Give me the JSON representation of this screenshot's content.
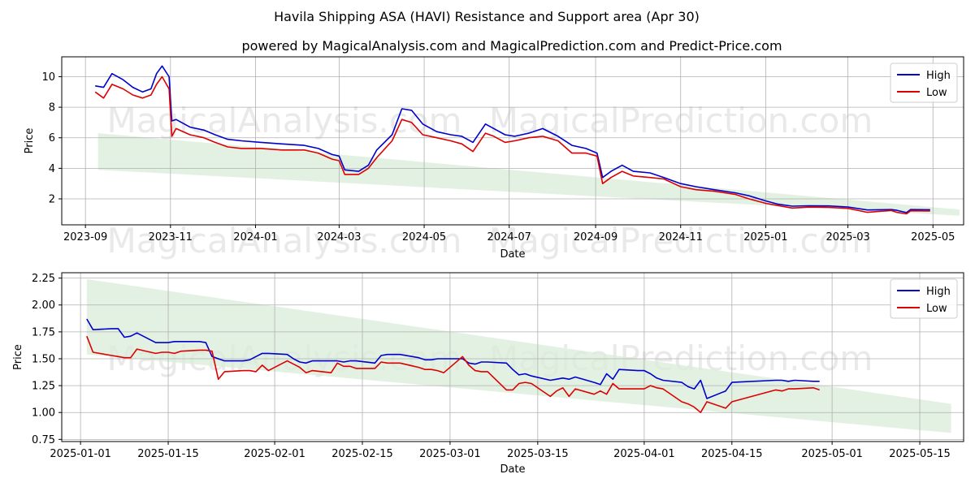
{
  "title": "Havila Shipping ASA (HAVI) Resistance and Support area (Apr 30)",
  "subtitle": "powered by MagicalAnalysis.com and MagicalPrediction.com and Predict-Price.com",
  "watermarks": [
    "MagicalAnalysis.com",
    "MagicalPrediction.com"
  ],
  "colors": {
    "high": "#0000cc",
    "low": "#dd0000",
    "band": "#d9ecd9",
    "grid": "#b0b0b0"
  },
  "chart_data": [
    {
      "type": "line",
      "xlabel": "Date",
      "ylabel": "Price",
      "grid": true,
      "legend_position": "top-right",
      "xlim": [
        "2023-08-15",
        "2025-05-23"
      ],
      "ylim": [
        0.3,
        11.3
      ],
      "x_ticks": [
        "2023-09",
        "2023-11",
        "2024-01",
        "2024-03",
        "2024-05",
        "2024-07",
        "2024-09",
        "2024-11",
        "2025-01",
        "2025-03",
        "2025-05"
      ],
      "x_tick_dates": [
        "2023-09-01",
        "2023-11-01",
        "2024-01-01",
        "2024-03-01",
        "2024-05-01",
        "2024-07-01",
        "2024-09-01",
        "2024-11-01",
        "2025-01-01",
        "2025-03-01",
        "2025-05-01"
      ],
      "y_ticks": [
        2,
        4,
        6,
        8,
        10
      ],
      "band": {
        "dates": [
          "2023-09-10",
          "2025-05-20"
        ],
        "upper": [
          6.3,
          1.3
        ],
        "lower": [
          3.9,
          0.9
        ]
      },
      "series": [
        {
          "name": "High",
          "dates": [
            "2023-09-08",
            "2023-09-14",
            "2023-09-20",
            "2023-09-28",
            "2023-10-05",
            "2023-10-12",
            "2023-10-18",
            "2023-10-22",
            "2023-10-26",
            "2023-10-31",
            "2023-11-02",
            "2023-11-05",
            "2023-11-15",
            "2023-11-25",
            "2023-12-03",
            "2023-12-12",
            "2023-12-22",
            "2024-01-05",
            "2024-01-20",
            "2024-02-05",
            "2024-02-15",
            "2024-02-25",
            "2024-03-01",
            "2024-03-05",
            "2024-03-15",
            "2024-03-22",
            "2024-03-28",
            "2024-04-08",
            "2024-04-15",
            "2024-04-22",
            "2024-04-30",
            "2024-05-10",
            "2024-05-20",
            "2024-05-28",
            "2024-06-05",
            "2024-06-14",
            "2024-06-20",
            "2024-06-28",
            "2024-07-05",
            "2024-07-15",
            "2024-07-25",
            "2024-08-05",
            "2024-08-15",
            "2024-08-25",
            "2024-09-02",
            "2024-09-06",
            "2024-09-12",
            "2024-09-20",
            "2024-09-28",
            "2024-10-10",
            "2024-10-20",
            "2024-11-01",
            "2024-11-12",
            "2024-11-25",
            "2024-12-10",
            "2024-12-20",
            "2025-01-01",
            "2025-01-10",
            "2025-01-20",
            "2025-02-01",
            "2025-02-15",
            "2025-03-01",
            "2025-03-15",
            "2025-04-01",
            "2025-04-05",
            "2025-04-12",
            "2025-04-15",
            "2025-04-29"
          ],
          "values": [
            9.4,
            9.3,
            10.2,
            9.8,
            9.3,
            9.0,
            9.2,
            10.2,
            10.7,
            10.0,
            7.1,
            7.2,
            6.7,
            6.5,
            6.2,
            5.9,
            5.8,
            5.7,
            5.6,
            5.5,
            5.3,
            4.9,
            4.8,
            3.9,
            3.8,
            4.2,
            5.2,
            6.2,
            7.9,
            7.8,
            6.9,
            6.4,
            6.2,
            6.1,
            5.7,
            6.9,
            6.6,
            6.2,
            6.1,
            6.3,
            6.6,
            6.1,
            5.5,
            5.3,
            5.0,
            3.4,
            3.8,
            4.2,
            3.8,
            3.7,
            3.4,
            3.0,
            2.8,
            2.6,
            2.4,
            2.2,
            1.87,
            1.65,
            1.52,
            1.55,
            1.54,
            1.47,
            1.27,
            1.3,
            1.25,
            1.1,
            1.3,
            1.29
          ]
        },
        {
          "name": "Low",
          "dates": [
            "2023-09-08",
            "2023-09-14",
            "2023-09-20",
            "2023-09-28",
            "2023-10-05",
            "2023-10-12",
            "2023-10-18",
            "2023-10-22",
            "2023-10-26",
            "2023-10-31",
            "2023-11-02",
            "2023-11-05",
            "2023-11-15",
            "2023-11-25",
            "2023-12-03",
            "2023-12-12",
            "2023-12-22",
            "2024-01-05",
            "2024-01-20",
            "2024-02-05",
            "2024-02-15",
            "2024-02-25",
            "2024-03-01",
            "2024-03-05",
            "2024-03-15",
            "2024-03-22",
            "2024-03-28",
            "2024-04-08",
            "2024-04-15",
            "2024-04-22",
            "2024-04-30",
            "2024-05-10",
            "2024-05-20",
            "2024-05-28",
            "2024-06-05",
            "2024-06-14",
            "2024-06-20",
            "2024-06-28",
            "2024-07-05",
            "2024-07-15",
            "2024-07-25",
            "2024-08-05",
            "2024-08-15",
            "2024-08-25",
            "2024-09-02",
            "2024-09-06",
            "2024-09-12",
            "2024-09-20",
            "2024-09-28",
            "2024-10-10",
            "2024-10-20",
            "2024-11-01",
            "2024-11-12",
            "2024-11-25",
            "2024-12-10",
            "2024-12-20",
            "2025-01-01",
            "2025-01-10",
            "2025-01-20",
            "2025-02-01",
            "2025-02-15",
            "2025-03-01",
            "2025-03-15",
            "2025-04-01",
            "2025-04-05",
            "2025-04-12",
            "2025-04-15",
            "2025-04-29"
          ],
          "values": [
            9.0,
            8.6,
            9.5,
            9.2,
            8.8,
            8.6,
            8.8,
            9.5,
            10.0,
            9.2,
            6.1,
            6.6,
            6.2,
            6.0,
            5.7,
            5.4,
            5.3,
            5.3,
            5.2,
            5.2,
            5.0,
            4.6,
            4.5,
            3.6,
            3.6,
            4.0,
            4.7,
            5.8,
            7.2,
            7.0,
            6.2,
            6.0,
            5.8,
            5.6,
            5.1,
            6.3,
            6.1,
            5.7,
            5.8,
            6.0,
            6.1,
            5.8,
            5.0,
            5.0,
            4.8,
            3.0,
            3.4,
            3.8,
            3.5,
            3.4,
            3.3,
            2.8,
            2.6,
            2.5,
            2.3,
            2.0,
            1.71,
            1.56,
            1.4,
            1.46,
            1.44,
            1.38,
            1.12,
            1.24,
            1.12,
            1.02,
            1.22,
            1.21
          ]
        }
      ]
    },
    {
      "type": "line",
      "xlabel": "Date",
      "ylabel": "Price",
      "grid": true,
      "legend_position": "top-right",
      "xlim": [
        "2024-12-29",
        "2025-05-22"
      ],
      "ylim": [
        0.73,
        2.3
      ],
      "x_ticks": [
        "2025-01-01",
        "2025-01-15",
        "2025-02-01",
        "2025-02-15",
        "2025-03-01",
        "2025-03-15",
        "2025-04-01",
        "2025-04-15",
        "2025-05-01",
        "2025-05-15"
      ],
      "y_ticks": [
        0.75,
        1.0,
        1.25,
        1.5,
        1.75,
        2.0,
        2.25
      ],
      "band": {
        "dates": [
          "2025-01-02",
          "2025-05-20"
        ],
        "upper": [
          2.24,
          1.08
        ],
        "lower": [
          1.54,
          0.81
        ]
      },
      "series": [
        {
          "name": "High",
          "dates": [
            "2025-01-02",
            "2025-01-03",
            "2025-01-06",
            "2025-01-07",
            "2025-01-08",
            "2025-01-09",
            "2025-01-10",
            "2025-01-13",
            "2025-01-14",
            "2025-01-15",
            "2025-01-16",
            "2025-01-17",
            "2025-01-20",
            "2025-01-21",
            "2025-01-22",
            "2025-01-23",
            "2025-01-24",
            "2025-01-27",
            "2025-01-28",
            "2025-01-29",
            "2025-01-30",
            "2025-01-31",
            "2025-02-03",
            "2025-02-04",
            "2025-02-05",
            "2025-02-06",
            "2025-02-07",
            "2025-02-10",
            "2025-02-11",
            "2025-02-12",
            "2025-02-13",
            "2025-02-14",
            "2025-02-17",
            "2025-02-18",
            "2025-02-19",
            "2025-02-20",
            "2025-02-21",
            "2025-02-24",
            "2025-02-25",
            "2025-02-26",
            "2025-02-27",
            "2025-02-28",
            "2025-03-03",
            "2025-03-04",
            "2025-03-05",
            "2025-03-06",
            "2025-03-07",
            "2025-03-10",
            "2025-03-11",
            "2025-03-12",
            "2025-03-13",
            "2025-03-14",
            "2025-03-17",
            "2025-03-18",
            "2025-03-19",
            "2025-03-20",
            "2025-03-21",
            "2025-03-24",
            "2025-03-25",
            "2025-03-26",
            "2025-03-27",
            "2025-03-28",
            "2025-03-31",
            "2025-04-01",
            "2025-04-02",
            "2025-04-03",
            "2025-04-04",
            "2025-04-07",
            "2025-04-08",
            "2025-04-09",
            "2025-04-10",
            "2025-04-11",
            "2025-04-14",
            "2025-04-15",
            "2025-04-22",
            "2025-04-23",
            "2025-04-24",
            "2025-04-25",
            "2025-04-28",
            "2025-04-29"
          ],
          "values": [
            1.87,
            1.77,
            1.78,
            1.78,
            1.7,
            1.71,
            1.74,
            1.65,
            1.65,
            1.65,
            1.66,
            1.66,
            1.66,
            1.65,
            1.52,
            1.5,
            1.48,
            1.48,
            1.49,
            1.52,
            1.55,
            1.55,
            1.54,
            1.5,
            1.47,
            1.46,
            1.48,
            1.48,
            1.48,
            1.47,
            1.48,
            1.48,
            1.46,
            1.53,
            1.54,
            1.54,
            1.54,
            1.51,
            1.49,
            1.49,
            1.5,
            1.5,
            1.5,
            1.46,
            1.45,
            1.47,
            1.47,
            1.46,
            1.4,
            1.35,
            1.36,
            1.34,
            1.3,
            1.31,
            1.32,
            1.31,
            1.33,
            1.28,
            1.26,
            1.36,
            1.31,
            1.4,
            1.39,
            1.39,
            1.36,
            1.32,
            1.3,
            1.28,
            1.24,
            1.22,
            1.3,
            1.13,
            1.2,
            1.28,
            1.3,
            1.3,
            1.29,
            1.3,
            1.29,
            1.29
          ]
        },
        {
          "name": "Low",
          "dates": [
            "2025-01-02",
            "2025-01-03",
            "2025-01-06",
            "2025-01-07",
            "2025-01-08",
            "2025-01-09",
            "2025-01-10",
            "2025-01-13",
            "2025-01-14",
            "2025-01-15",
            "2025-01-16",
            "2025-01-17",
            "2025-01-20",
            "2025-01-21",
            "2025-01-22",
            "2025-01-23",
            "2025-01-24",
            "2025-01-27",
            "2025-01-28",
            "2025-01-29",
            "2025-01-30",
            "2025-01-31",
            "2025-02-03",
            "2025-02-04",
            "2025-02-05",
            "2025-02-06",
            "2025-02-07",
            "2025-02-10",
            "2025-02-11",
            "2025-02-12",
            "2025-02-13",
            "2025-02-14",
            "2025-02-17",
            "2025-02-18",
            "2025-02-19",
            "2025-02-20",
            "2025-02-21",
            "2025-02-24",
            "2025-02-25",
            "2025-02-26",
            "2025-02-27",
            "2025-02-28",
            "2025-03-03",
            "2025-03-04",
            "2025-03-05",
            "2025-03-06",
            "2025-03-07",
            "2025-03-10",
            "2025-03-11",
            "2025-03-12",
            "2025-03-13",
            "2025-03-14",
            "2025-03-17",
            "2025-03-18",
            "2025-03-19",
            "2025-03-20",
            "2025-03-21",
            "2025-03-24",
            "2025-03-25",
            "2025-03-26",
            "2025-03-27",
            "2025-03-28",
            "2025-03-31",
            "2025-04-01",
            "2025-04-02",
            "2025-04-03",
            "2025-04-04",
            "2025-04-07",
            "2025-04-08",
            "2025-04-09",
            "2025-04-10",
            "2025-04-11",
            "2025-04-14",
            "2025-04-15",
            "2025-04-22",
            "2025-04-23",
            "2025-04-24",
            "2025-04-25",
            "2025-04-28",
            "2025-04-29"
          ],
          "values": [
            1.71,
            1.56,
            1.53,
            1.52,
            1.51,
            1.51,
            1.59,
            1.55,
            1.56,
            1.56,
            1.55,
            1.57,
            1.58,
            1.58,
            1.57,
            1.31,
            1.38,
            1.39,
            1.39,
            1.38,
            1.44,
            1.39,
            1.48,
            1.45,
            1.42,
            1.37,
            1.39,
            1.37,
            1.46,
            1.43,
            1.43,
            1.41,
            1.41,
            1.47,
            1.46,
            1.46,
            1.46,
            1.42,
            1.4,
            1.4,
            1.39,
            1.37,
            1.52,
            1.44,
            1.39,
            1.38,
            1.38,
            1.21,
            1.21,
            1.27,
            1.28,
            1.27,
            1.15,
            1.2,
            1.23,
            1.15,
            1.22,
            1.17,
            1.2,
            1.17,
            1.27,
            1.22,
            1.22,
            1.22,
            1.25,
            1.23,
            1.22,
            1.1,
            1.08,
            1.05,
            1.0,
            1.1,
            1.04,
            1.1,
            1.21,
            1.2,
            1.22,
            1.22,
            1.23,
            1.21
          ]
        }
      ]
    }
  ]
}
